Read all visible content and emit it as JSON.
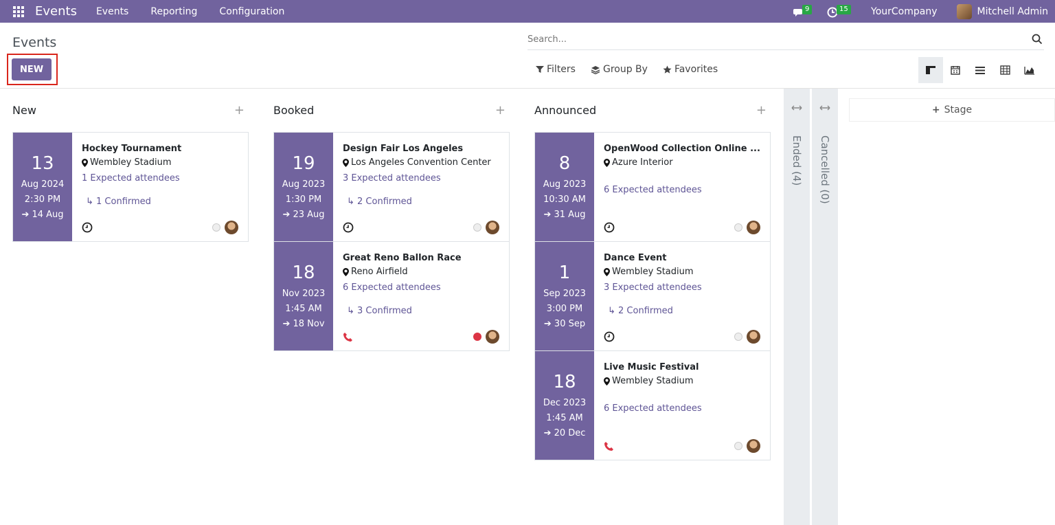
{
  "navbar": {
    "brand": "Events",
    "menus": [
      "Events",
      "Reporting",
      "Configuration"
    ],
    "messages_count": "9",
    "activities_count": "15",
    "company": "YourCompany",
    "user": "Mitchell Admin"
  },
  "control_panel": {
    "breadcrumb": "Events",
    "new_label": "NEW",
    "search_placeholder": "Search...",
    "filters_label": "Filters",
    "groupby_label": "Group By",
    "favorites_label": "Favorites"
  },
  "columns": [
    {
      "title": "New",
      "cards": [
        {
          "day": "13",
          "month_year": "Aug 2024",
          "time": "2:30 PM",
          "end": "14 Aug",
          "title": "Hockey Tournament",
          "location": "Wembley Stadium",
          "attendees": "1 Expected attendees",
          "confirmed": "↳ 1 Confirmed",
          "activity": "clock-icon",
          "state": "grey"
        }
      ]
    },
    {
      "title": "Booked",
      "cards": [
        {
          "day": "19",
          "month_year": "Aug 2023",
          "time": "1:30 PM",
          "end": "23 Aug",
          "title": "Design Fair Los Angeles",
          "location": "Los Angeles Convention Center",
          "attendees": "3 Expected attendees",
          "confirmed": "↳ 2 Confirmed",
          "activity": "clock-icon",
          "state": "grey"
        },
        {
          "day": "18",
          "month_year": "Nov 2023",
          "time": "1:45 AM",
          "end": "18 Nov",
          "title": "Great Reno Ballon Race",
          "location": "Reno Airfield",
          "attendees": "6 Expected attendees",
          "confirmed": "↳ 3 Confirmed",
          "activity": "phone-icon",
          "state": "red"
        }
      ]
    },
    {
      "title": "Announced",
      "cards": [
        {
          "day": "8",
          "month_year": "Aug 2023",
          "time": "10:30 AM",
          "end": "31 Aug",
          "title": "OpenWood Collection Online ...",
          "location": "Azure Interior",
          "attendees": "6 Expected attendees",
          "confirmed": "",
          "activity": "clock-icon",
          "state": "grey"
        },
        {
          "day": "1",
          "month_year": "Sep 2023",
          "time": "3:00 PM",
          "end": "30 Sep",
          "title": "Dance Event",
          "location": "Wembley Stadium",
          "attendees": "3 Expected attendees",
          "confirmed": "↳ 2 Confirmed",
          "activity": "clock-icon",
          "state": "grey"
        },
        {
          "day": "18",
          "month_year": "Dec 2023",
          "time": "1:45 AM",
          "end": "20 Dec",
          "title": "Live Music Festival",
          "location": "Wembley Stadium",
          "attendees": "6 Expected attendees",
          "confirmed": "",
          "activity": "phone-icon",
          "state": "grey"
        }
      ]
    }
  ],
  "folded": [
    {
      "label": "Ended (4)"
    },
    {
      "label": "Cancelled (0)"
    }
  ],
  "add_stage_label": "Stage",
  "colors": {
    "primary": "#71639e",
    "link": "#5e5495",
    "danger": "#dc3545"
  }
}
